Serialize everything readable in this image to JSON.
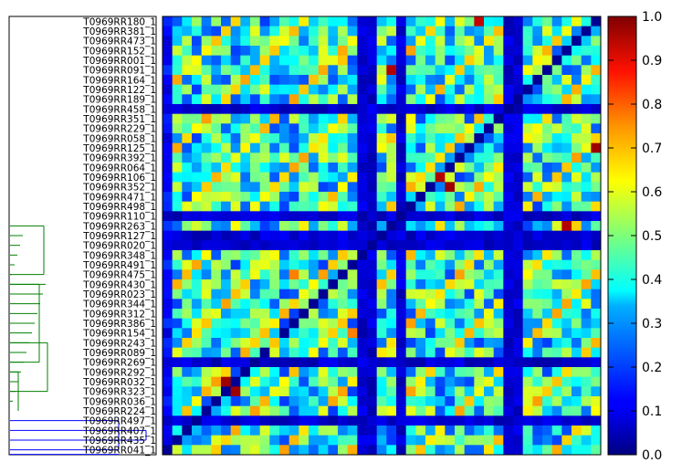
{
  "chart_data": {
    "type": "heatmap",
    "title": "",
    "xlabel": "",
    "ylabel": "",
    "row_labels": [
      "T0969RR180_1",
      "T0969RR381_1",
      "T0969RR473_1",
      "T0969RR152_1",
      "T0969RR001_1",
      "T0969RR091_1",
      "T0969RR164_1",
      "T0969RR122_1",
      "T0969RR189_1",
      "T0969RR458_1",
      "T0969RR351_1",
      "T0969RR229_1",
      "T0969RR058_1",
      "T0969RR125_1",
      "T0969RR392_1",
      "T0969RR064_1",
      "T0969RR106_1",
      "T0969RR352_1",
      "T0969RR471_1",
      "T0969RR498_1",
      "T0969RR110_1",
      "T0969RR263_1",
      "T0969RR127_1",
      "T0969RR020_1",
      "T0969RR348_1",
      "T0969RR491_1",
      "T0969RR475_1",
      "T0969RR430_1",
      "T0969RR023_1",
      "T0969RR344_1",
      "T0969RR312_1",
      "T0969RR386_1",
      "T0969RR154_1",
      "T0969RR243_1",
      "T0969RR089_1",
      "T0969RR269_1",
      "T0969RR292_1",
      "T0969RR032_1",
      "T0969RR323_1",
      "T0969RR036_1",
      "T0969RR224_1",
      "T0969RR497_1",
      "T0969RR407_1",
      "T0969RR435_1",
      "T0969RR041_1"
    ],
    "colorbar": {
      "range": [
        0.0,
        1.0
      ],
      "ticks": [
        "0.0",
        "0.1",
        "0.2",
        "0.3",
        "0.4",
        "0.5",
        "0.6",
        "0.7",
        "0.8",
        "0.9",
        "1.0"
      ],
      "colormap": "jet"
    },
    "dendrogram_colors": {
      "lower_cluster": "#0000ff",
      "upper_cluster": "#008000"
    },
    "matrix_size": 45,
    "low_rows": [
      9,
      20,
      22,
      23,
      35,
      41
    ],
    "low_cols": [
      20,
      21,
      24,
      35,
      36
    ],
    "hotspots": [
      {
        "row": 0,
        "col": 32,
        "value": 0.93
      },
      {
        "row": 5,
        "col": 23,
        "value": 0.95
      },
      {
        "row": 13,
        "col": 44,
        "value": 0.97
      },
      {
        "row": 16,
        "col": 28,
        "value": 0.95
      },
      {
        "row": 17,
        "col": 29,
        "value": 0.97
      },
      {
        "row": 21,
        "col": 41,
        "value": 0.95
      },
      {
        "row": 37,
        "col": 6,
        "value": 0.97
      },
      {
        "row": 38,
        "col": 7,
        "value": 0.97
      },
      {
        "row": 4,
        "col": 18,
        "value": 0.68
      },
      {
        "row": 26,
        "col": 13,
        "value": 0.75
      },
      {
        "row": 32,
        "col": 19,
        "value": 0.75
      },
      {
        "row": 33,
        "col": 11,
        "value": 0.68
      }
    ]
  }
}
